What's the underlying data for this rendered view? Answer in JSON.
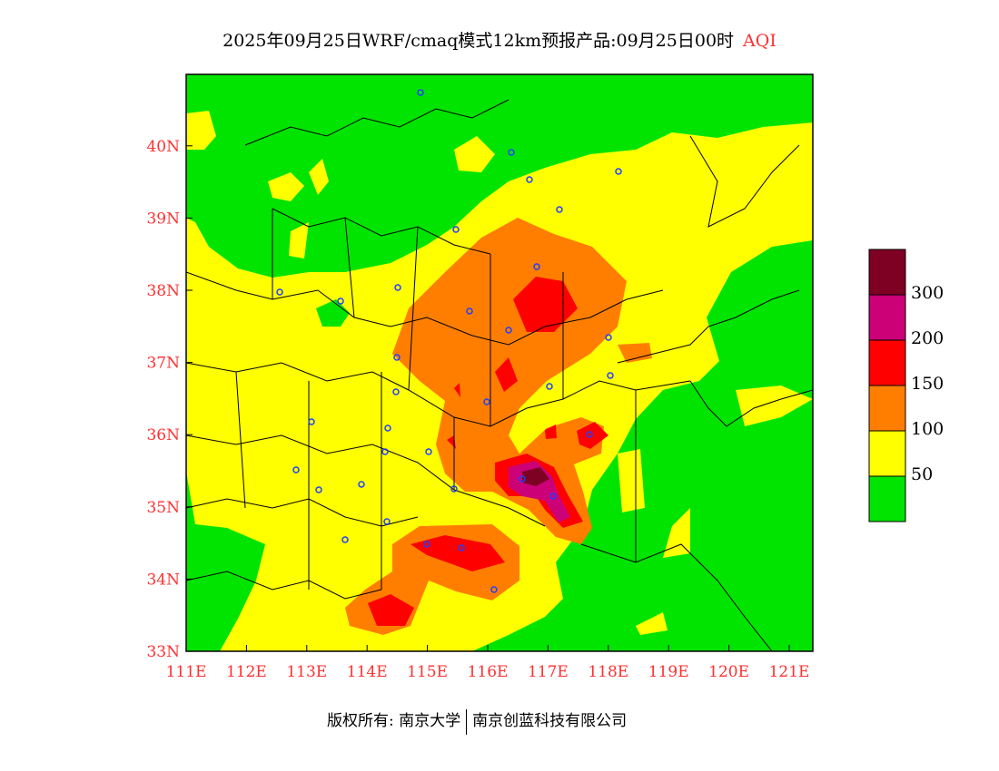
{
  "title": {
    "main": "2025年09月25日WRF/cmaq模式12km预报产品:09月25日00时",
    "variable": "AQI"
  },
  "axes": {
    "lon_ticks": [
      "111E",
      "112E",
      "113E",
      "114E",
      "115E",
      "116E",
      "117E",
      "118E",
      "119E",
      "120E",
      "121E"
    ],
    "lat_ticks": [
      "33N",
      "34N",
      "35N",
      "36N",
      "37N",
      "38N",
      "39N",
      "40N"
    ]
  },
  "legend": {
    "colors": [
      "#00e400",
      "#ffff00",
      "#ff7e00",
      "#ff0000",
      "#cc0077",
      "#7e0023"
    ],
    "labels": [
      "50",
      "100",
      "150",
      "200",
      "300"
    ]
  },
  "footer": {
    "left": "版权所有: 南京大学",
    "right": "南京创蓝科技有限公司"
  }
}
